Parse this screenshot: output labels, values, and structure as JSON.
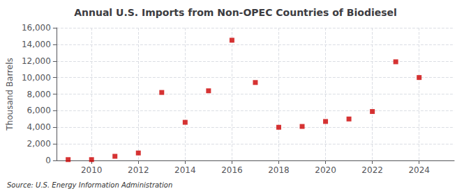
{
  "chart_data": {
    "type": "scatter",
    "title": "Annual U.S. Imports from Non-OPEC Countries of Biodiesel",
    "ylabel": "Thousand Barrels",
    "annotation": "Source: U.S. Energy Information Administration",
    "x": [
      2009,
      2010,
      2011,
      2012,
      2013,
      2014,
      2015,
      2016,
      2017,
      2018,
      2019,
      2020,
      2021,
      2022,
      2023,
      2024
    ],
    "values": [
      100,
      100,
      500,
      900,
      8200,
      4600,
      8400,
      14500,
      9400,
      4000,
      4100,
      4700,
      5000,
      5900,
      11900,
      10000
    ],
    "color": "#cc0000",
    "marker": "square",
    "xlim": [
      2008.5,
      2025.5
    ],
    "xticks": [
      2010,
      2012,
      2014,
      2016,
      2018,
      2020,
      2022,
      2024
    ],
    "ylim": [
      0,
      16000
    ],
    "yticks": [
      0,
      {
        "value": 2000,
        "label": "2,000"
      },
      {
        "value": 4000,
        "label": "4,000"
      },
      {
        "value": 6000,
        "label": "6,000"
      },
      {
        "value": 8000,
        "label": "8,000"
      },
      {
        "value": 10000,
        "label": "10,000"
      },
      {
        "value": 12000,
        "label": "12,000"
      },
      {
        "value": 14000,
        "label": "14,000"
      },
      {
        "value": 16000,
        "label": "16,000"
      }
    ],
    "grid": true
  }
}
